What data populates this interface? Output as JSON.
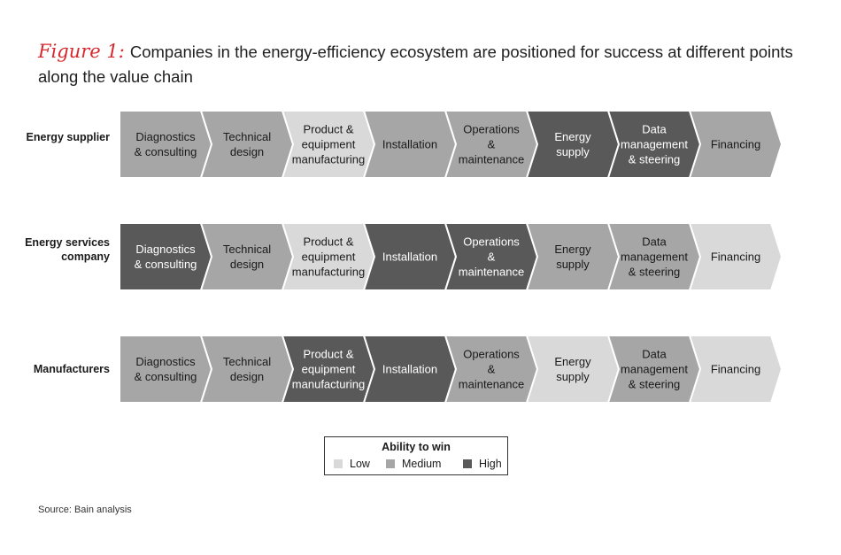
{
  "title": {
    "figure_label": "Figure 1:",
    "text": "Companies in the energy-efficiency ecosystem are positioned for success at different points along the value chain"
  },
  "colors": {
    "low": "#d9d9d9",
    "medium": "#a6a6a6",
    "high": "#595959",
    "text_dark_bg": "#ffffff",
    "text_light_bg": "#1a1a1a",
    "accent": "#d6282d"
  },
  "stages": [
    [
      "Diagnostics",
      "& consulting"
    ],
    [
      "Technical",
      "design"
    ],
    [
      "Product &",
      "equipment",
      "manufacturing"
    ],
    [
      "Installation"
    ],
    [
      "Operations",
      "&",
      "maintenance"
    ],
    [
      "Energy",
      "supply"
    ],
    [
      "Data",
      "management",
      "& steering"
    ],
    [
      "Financing"
    ]
  ],
  "rows": [
    {
      "label": "Energy supplier",
      "levels": [
        "medium",
        "medium",
        "low",
        "medium",
        "medium",
        "high",
        "high",
        "medium"
      ]
    },
    {
      "label": "Energy services company",
      "levels": [
        "high",
        "medium",
        "low",
        "high",
        "high",
        "medium",
        "medium",
        "low"
      ]
    },
    {
      "label": "Manufacturers",
      "levels": [
        "medium",
        "medium",
        "high",
        "high",
        "medium",
        "low",
        "medium",
        "low"
      ]
    }
  ],
  "legend": {
    "title": "Ability to win",
    "items": [
      {
        "label": "Low",
        "level": "low"
      },
      {
        "label": "Medium",
        "level": "medium"
      },
      {
        "label": "High",
        "level": "high"
      }
    ]
  },
  "source": "Source: Bain analysis"
}
